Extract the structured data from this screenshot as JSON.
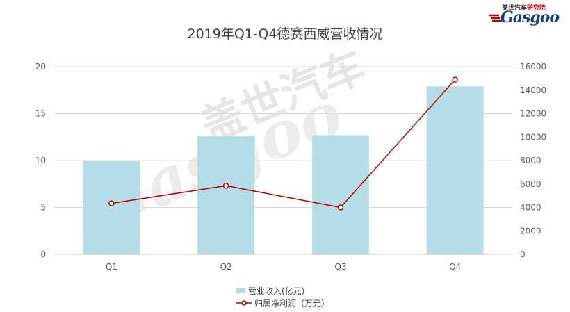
{
  "logo": {
    "cn_prefix": "盖世汽车",
    "cn_suffix": "研究院",
    "en": "Gasgoo"
  },
  "watermark": {
    "cn": "盖世汽车",
    "en": "Gasgoo"
  },
  "chart_data": {
    "type": "bar+line",
    "title": "2019年Q1-Q4德赛西威营收情况",
    "categories": [
      "Q1",
      "Q2",
      "Q3",
      "Q4"
    ],
    "series": [
      {
        "name": "营业收入(亿元)",
        "type": "bar",
        "axis": "left",
        "values": [
          10.0,
          12.6,
          12.7,
          17.9
        ],
        "color": "#b4dde7"
      },
      {
        "name": "归属净利润（万元）",
        "type": "line",
        "axis": "right",
        "values": [
          4350,
          5850,
          4000,
          14900
        ],
        "color": "#c00000"
      }
    ],
    "y_left": {
      "min": 0,
      "max": 20,
      "ticks": [
        0,
        5,
        10,
        15,
        20
      ]
    },
    "y_right": {
      "min": 0,
      "max": 16000,
      "ticks": [
        0,
        2000,
        4000,
        6000,
        8000,
        10000,
        12000,
        14000,
        16000
      ]
    },
    "grid": true,
    "legend_position": "bottom"
  }
}
